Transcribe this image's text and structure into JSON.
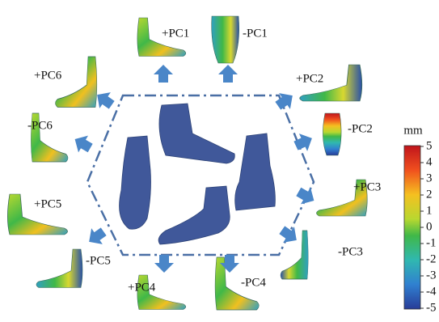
{
  "labels": [
    "+PC1",
    "-PC1",
    "+PC2",
    "-PC2",
    "+PC3",
    "-PC3",
    "+PC4",
    "-PC4",
    "+PC5",
    "-PC5",
    "+PC6",
    "-PC6"
  ],
  "colorbar": {
    "unit": "mm",
    "ticks": [
      5,
      4,
      3,
      2,
      1,
      0,
      -1,
      -2,
      -3,
      -4,
      -5
    ]
  }
}
